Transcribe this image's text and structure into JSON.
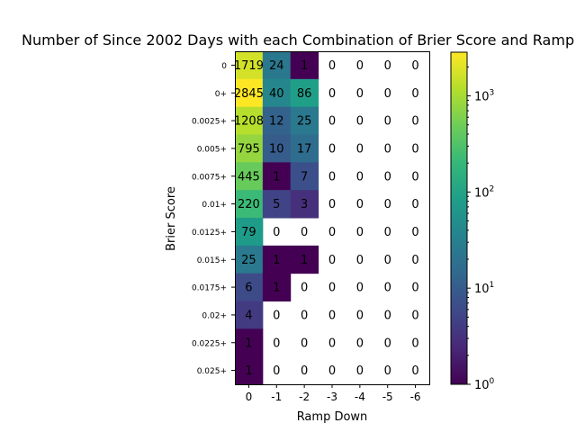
{
  "chart_data": {
    "type": "heatmap",
    "title": "Number of Since 2002 Days with each Combination of Brier Score and Ramp Down",
    "xlabel": "Ramp Down",
    "ylabel": "Brier Score",
    "x_categories": [
      "0",
      "-1",
      "-2",
      "-3",
      "-4",
      "-5",
      "-6"
    ],
    "y_categories": [
      "0",
      "0+",
      "0.0025+",
      "0.005+",
      "0.0075+",
      "0.01+",
      "0.0125+",
      "0.015+",
      "0.0175+",
      "0.02+",
      "0.0225+",
      "0.025+"
    ],
    "values": [
      [
        1719,
        24,
        1,
        0,
        0,
        0,
        0
      ],
      [
        2845,
        40,
        86,
        0,
        0,
        0,
        0
      ],
      [
        1208,
        12,
        25,
        0,
        0,
        0,
        0
      ],
      [
        795,
        10,
        17,
        0,
        0,
        0,
        0
      ],
      [
        445,
        1,
        7,
        0,
        0,
        0,
        0
      ],
      [
        220,
        5,
        3,
        0,
        0,
        0,
        0
      ],
      [
        79,
        0,
        0,
        0,
        0,
        0,
        0
      ],
      [
        25,
        1,
        1,
        0,
        0,
        0,
        0
      ],
      [
        6,
        1,
        0,
        0,
        0,
        0,
        0
      ],
      [
        4,
        0,
        0,
        0,
        0,
        0,
        0
      ],
      [
        1,
        0,
        0,
        0,
        0,
        0,
        0
      ],
      [
        1,
        0,
        0,
        0,
        0,
        0,
        0
      ]
    ],
    "color_scale": "log",
    "colormap": "viridis",
    "zero_cells": "blank",
    "colorbar": {
      "range": [
        1,
        2845
      ],
      "tick_base": "10",
      "tick_exponents": [
        "0",
        "1",
        "2",
        "3"
      ]
    }
  }
}
